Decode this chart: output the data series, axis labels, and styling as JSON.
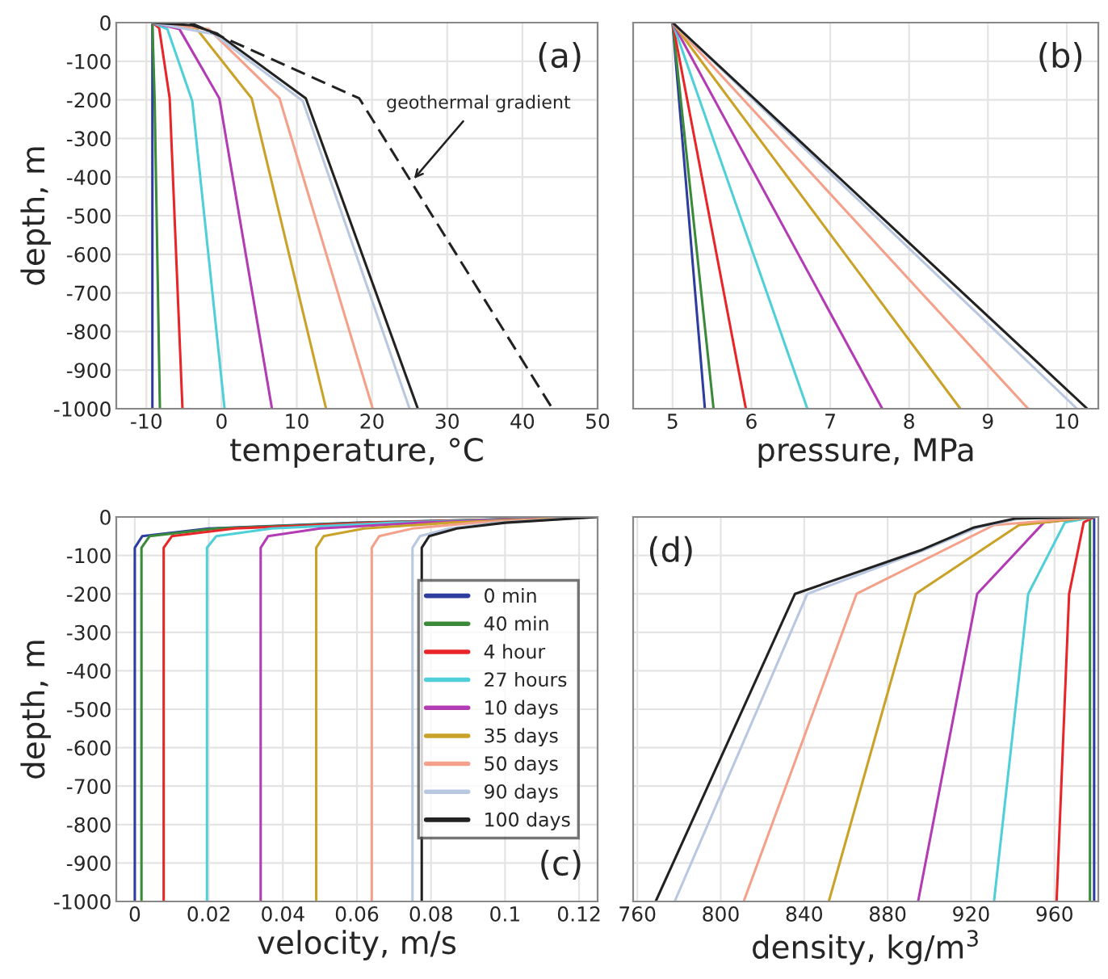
{
  "chart_data": [
    {
      "type": "line",
      "xlabel": "temperature, °C",
      "ylabel": "depth, m",
      "xlim": [
        -14,
        50
      ],
      "xticks": [
        -10,
        0,
        10,
        20,
        30,
        40,
        50
      ],
      "ylim": [
        -1000,
        0
      ],
      "yticks": [
        0,
        -100,
        -200,
        -300,
        -400,
        -500,
        -600,
        -700,
        -800,
        -900,
        -1000
      ],
      "grid": true,
      "legend": false,
      "annotations": [
        "(a)",
        {
          "text": "geothermal gradient",
          "x": 25.2,
          "y": -413
        }
      ],
      "series": [
        {
          "color": "#2e3d9e",
          "x": [
            -9.2,
            -9.2
          ],
          "values": [
            0,
            -1000
          ]
        },
        {
          "color": "#3a8a3a",
          "x": [
            -9.2,
            -8.9,
            -8.2
          ],
          "values": [
            0,
            -200,
            -1000
          ]
        },
        {
          "color": "#e8262a",
          "x": [
            -9.2,
            -8.3,
            -6.9,
            -5.2
          ],
          "values": [
            0,
            -14,
            -196,
            -1000
          ]
        },
        {
          "color": "#4fd0d8",
          "x": [
            -9.2,
            -7.2,
            -3.9,
            0.4
          ],
          "values": [
            0,
            -17,
            -203,
            -1000
          ]
        },
        {
          "color": "#b33bb3",
          "x": [
            -9.2,
            -5.6,
            -0.3,
            6.7
          ],
          "values": [
            0,
            -17,
            -196,
            -1000
          ]
        },
        {
          "color": "#c9a227",
          "x": [
            -9.2,
            -3.4,
            4.0,
            13.9
          ],
          "values": [
            0,
            -14,
            -196,
            -1000
          ]
        },
        {
          "color": "#f4a08a",
          "x": [
            -9.2,
            -1.7,
            7.7,
            20.1
          ],
          "values": [
            0,
            -17,
            -196,
            -1000
          ]
        },
        {
          "color": "#b8c8e0",
          "x": [
            -9.2,
            -1.0,
            10.8,
            25.0
          ],
          "values": [
            0,
            -30,
            -203,
            -1000
          ]
        },
        {
          "color": "#222222",
          "x": [
            -9.2,
            -3.9,
            -0.6,
            11.2,
            26.1
          ],
          "values": [
            0,
            -7,
            -28,
            -196,
            -1000
          ]
        },
        {
          "color": "#222222",
          "line_style": "dashed",
          "x": [
            -4.2,
            18.3,
            44.0
          ],
          "values": [
            0,
            -196,
            -1000
          ]
        }
      ]
    },
    {
      "type": "line",
      "xlabel": "pressure, MPa",
      "xlim": [
        4.5,
        10.4
      ],
      "xticks": [
        5,
        6,
        7,
        8,
        9,
        10
      ],
      "ylim": [
        -1000,
        0
      ],
      "yticks": [
        0,
        -100,
        -200,
        -300,
        -400,
        -500,
        -600,
        -700,
        -800,
        -900,
        -1000
      ],
      "tick_labels": "x",
      "grid": true,
      "legend": false,
      "annotations": [
        "(b)"
      ],
      "series": [
        {
          "color": "#2e3d9e",
          "x": [
            5,
            5.41
          ],
          "values": [
            0,
            -1000
          ]
        },
        {
          "color": "#3a8a3a",
          "x": [
            5,
            5.52
          ],
          "values": [
            0,
            -1000
          ]
        },
        {
          "color": "#e8262a",
          "x": [
            5,
            5.93
          ],
          "values": [
            0,
            -1000
          ]
        },
        {
          "color": "#4fd0d8",
          "x": [
            5,
            6.71
          ],
          "values": [
            0,
            -1000
          ]
        },
        {
          "color": "#b33bb3",
          "x": [
            5,
            7.66
          ],
          "values": [
            0,
            -1000
          ]
        },
        {
          "color": "#c9a227",
          "x": [
            5,
            8.65
          ],
          "values": [
            0,
            -1000
          ]
        },
        {
          "color": "#f4a08a",
          "x": [
            5,
            9.51
          ],
          "values": [
            0,
            -1000
          ]
        },
        {
          "color": "#b8c8e0",
          "x": [
            5,
            10.13
          ],
          "values": [
            0,
            -1000
          ]
        },
        {
          "color": "#222222",
          "x": [
            5,
            10.26
          ],
          "values": [
            0,
            -1000
          ]
        }
      ]
    },
    {
      "type": "line",
      "xlabel": "velocity, m/s",
      "ylabel": "depth, m",
      "xlim": [
        -0.005,
        0.125
      ],
      "xticks": [
        0,
        0.02,
        0.04,
        0.06,
        0.08,
        0.1,
        0.12
      ],
      "ylim": [
        -1000,
        0
      ],
      "yticks": [
        0,
        -100,
        -200,
        -300,
        -400,
        -500,
        -600,
        -700,
        -800,
        -900,
        -1000
      ],
      "grid": true,
      "legend": "right",
      "annotations": [
        "(c)"
      ],
      "series": [
        {
          "name": "0 min",
          "color": "#2e3d9e",
          "x": [
            0.0,
            0.0,
            0.002,
            0.02,
            0.06,
            0.125
          ],
          "values": [
            -1000,
            -80,
            -50,
            -30,
            -15,
            0
          ]
        },
        {
          "name": "40 min",
          "color": "#3a8a3a",
          "x": [
            0.0018,
            0.0018,
            0.004,
            0.022,
            0.062,
            0.125
          ],
          "values": [
            -1000,
            -80,
            -50,
            -30,
            -15,
            0
          ]
        },
        {
          "name": "4 hour",
          "color": "#e8262a",
          "x": [
            0.0078,
            0.0078,
            0.01,
            0.027,
            0.065,
            0.125
          ],
          "values": [
            -1000,
            -80,
            -50,
            -30,
            -15,
            0
          ]
        },
        {
          "name": "27 hours",
          "color": "#4fd0d8",
          "x": [
            0.0195,
            0.0195,
            0.022,
            0.037,
            0.07,
            0.125
          ],
          "values": [
            -1000,
            -80,
            -50,
            -30,
            -15,
            0
          ]
        },
        {
          "name": "10 days",
          "color": "#b33bb3",
          "x": [
            0.034,
            0.034,
            0.036,
            0.05,
            0.077,
            0.125
          ],
          "values": [
            -1000,
            -80,
            -50,
            -30,
            -15,
            0
          ]
        },
        {
          "name": "35 days",
          "color": "#c9a227",
          "x": [
            0.049,
            0.049,
            0.051,
            0.062,
            0.085,
            0.125
          ],
          "values": [
            -1000,
            -80,
            -50,
            -30,
            -15,
            0
          ]
        },
        {
          "name": "50 days",
          "color": "#f4a08a",
          "x": [
            0.064,
            0.064,
            0.066,
            0.075,
            0.092,
            0.125
          ],
          "values": [
            -1000,
            -80,
            -50,
            -30,
            -15,
            0
          ]
        },
        {
          "name": "90 days",
          "color": "#b8c8e0",
          "x": [
            0.075,
            0.075,
            0.077,
            0.085,
            0.098,
            0.125
          ],
          "values": [
            -1000,
            -80,
            -50,
            -30,
            -15,
            0
          ]
        },
        {
          "name": "100 days",
          "color": "#222222",
          "x": [
            0.0775,
            0.0775,
            0.0795,
            0.087,
            0.1,
            0.125
          ],
          "values": [
            -1000,
            -80,
            -50,
            -30,
            -15,
            0
          ]
        }
      ]
    },
    {
      "type": "line",
      "xlabel": "density, kg/m$^{3}$",
      "xlim": [
        758,
        981
      ],
      "xticks": [
        760,
        800,
        840,
        880,
        920,
        960
      ],
      "ylim": [
        -1000,
        0
      ],
      "yticks": [
        0,
        -100,
        -200,
        -300,
        -400,
        -500,
        -600,
        -700,
        -800,
        -900,
        -1000
      ],
      "tick_labels": "x",
      "grid": true,
      "legend": false,
      "annotations": [
        "(d)"
      ],
      "series": [
        {
          "color": "#2e3d9e",
          "x": [
            979,
            979
          ],
          "values": [
            0,
            -1000
          ]
        },
        {
          "color": "#3a8a3a",
          "x": [
            979,
            977,
            977
          ],
          "values": [
            0,
            -5,
            -1000
          ]
        },
        {
          "color": "#e8262a",
          "x": [
            979,
            974,
            967,
            961
          ],
          "values": [
            0,
            -14,
            -200,
            -1000
          ]
        },
        {
          "color": "#4fd0d8",
          "x": [
            979,
            965,
            947.4,
            931
          ],
          "values": [
            0,
            -14,
            -200,
            -1000
          ]
        },
        {
          "color": "#b33bb3",
          "x": [
            979,
            955,
            922.9,
            894.6
          ],
          "values": [
            0,
            -14,
            -200,
            -1000
          ]
        },
        {
          "color": "#c9a227",
          "x": [
            979,
            943,
            893.4,
            851.8
          ],
          "values": [
            0,
            -21,
            -200,
            -1000
          ]
        },
        {
          "color": "#f4a08a",
          "x": [
            979,
            931,
            865.1,
            811
          ],
          "values": [
            0,
            -21,
            -200,
            -1000
          ]
        },
        {
          "color": "#b8c8e0",
          "x": [
            979,
            943,
            923,
            898,
            841.5,
            777.9
          ],
          "values": [
            0,
            -4,
            -28,
            -85,
            -200,
            -1000
          ]
        },
        {
          "color": "#222222",
          "x": [
            979,
            941,
            921,
            896.6,
            835.6,
            768.8
          ],
          "values": [
            0,
            -4,
            -28,
            -85,
            -200,
            -1000
          ]
        }
      ]
    }
  ]
}
